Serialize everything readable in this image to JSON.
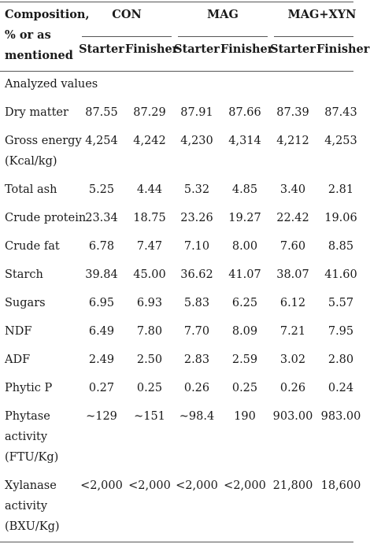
{
  "header": {
    "corner_lines": [
      "Composition,",
      "% or as",
      "mentioned"
    ],
    "groups": [
      "CON",
      "MAG",
      "MAG+XYN"
    ],
    "subheaders": [
      "Starter",
      "Finisher",
      "Starter",
      "Finisher",
      "Starter",
      "Finisher"
    ]
  },
  "section_label": "Analyzed values",
  "rows": [
    {
      "label": [
        "Dry matter"
      ],
      "values": [
        "87.55",
        "87.29",
        "87.91",
        "87.66",
        "87.39",
        "87.43"
      ]
    },
    {
      "label": [
        "Gross energy",
        "(Kcal/kg)"
      ],
      "values": [
        "4,254",
        "4,242",
        "4,230",
        "4,314",
        "4,212",
        "4,253"
      ]
    },
    {
      "label": [
        "Total ash"
      ],
      "values": [
        "5.25",
        "4.44",
        "5.32",
        "4.85",
        "3.40",
        "2.81"
      ]
    },
    {
      "label": [
        "Crude protein"
      ],
      "values": [
        "23.34",
        "18.75",
        "23.26",
        "19.27",
        "22.42",
        "19.06"
      ]
    },
    {
      "label": [
        "Crude fat"
      ],
      "values": [
        "6.78",
        "7.47",
        "7.10",
        "8.00",
        "7.60",
        "8.85"
      ]
    },
    {
      "label": [
        "Starch"
      ],
      "values": [
        "39.84",
        "45.00",
        "36.62",
        "41.07",
        "38.07",
        "41.60"
      ]
    },
    {
      "label": [
        "Sugars"
      ],
      "values": [
        "6.95",
        "6.93",
        "5.83",
        "6.25",
        "6.12",
        "5.57"
      ]
    },
    {
      "label": [
        "NDF"
      ],
      "values": [
        "6.49",
        "7.80",
        "7.70",
        "8.09",
        "7.21",
        "7.95"
      ]
    },
    {
      "label": [
        "ADF"
      ],
      "values": [
        "2.49",
        "2.50",
        "2.83",
        "2.59",
        "3.02",
        "2.80"
      ]
    },
    {
      "label": [
        "Phytic P"
      ],
      "values": [
        "0.27",
        "0.25",
        "0.26",
        "0.25",
        "0.26",
        "0.24"
      ]
    },
    {
      "label": [
        "Phytase",
        "activity",
        "(FTU/Kg)"
      ],
      "values": [
        "~129",
        "~151",
        "~98.4",
        "190",
        "903.00",
        "983.00"
      ]
    },
    {
      "label": [
        "Xylanase",
        "activity",
        "(BXU/Kg)"
      ],
      "values": [
        "<2,000",
        "<2,000",
        "<2,000",
        "<2,000",
        "21,800",
        "18,600"
      ]
    }
  ]
}
